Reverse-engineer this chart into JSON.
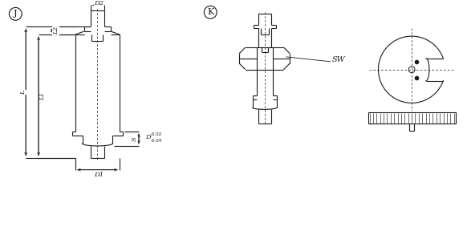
{
  "bg_color": "#ffffff",
  "line_color": "#1a1a1a",
  "label_J": "J",
  "label_K": "K",
  "label_SW": "SW",
  "label_D2": "D2",
  "label_D1": "D1",
  "label_D": "D",
  "label_D_sup": "-0.02",
  "label_D_sub": "-0.04",
  "label_L": "L",
  "label_L1": "L1",
  "label_L2": "L2",
  "label_S": "S"
}
